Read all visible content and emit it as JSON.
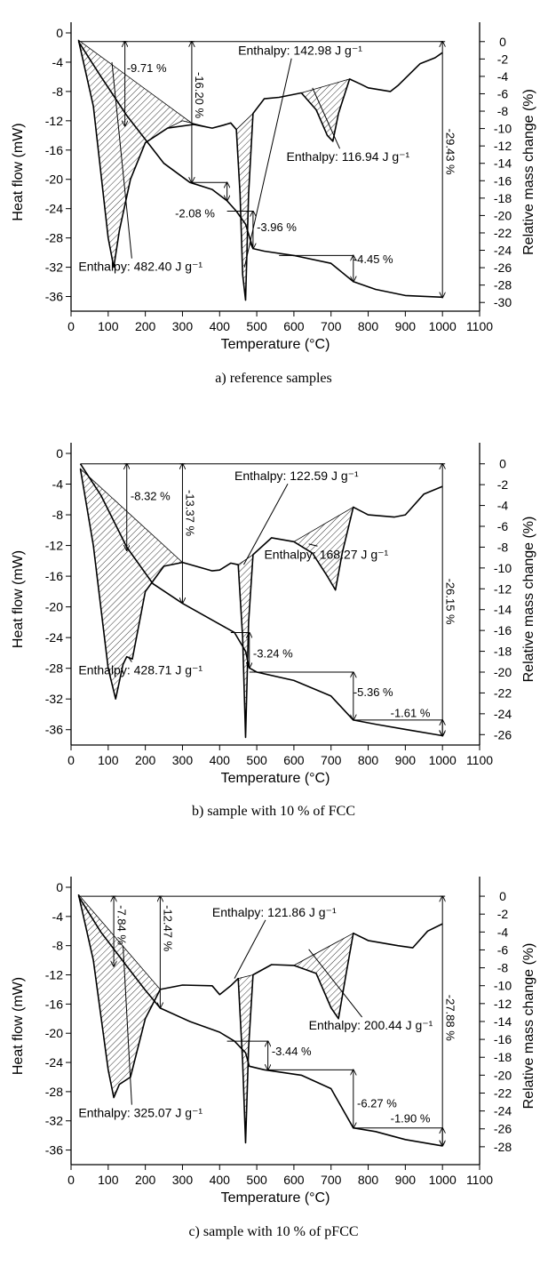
{
  "chart_data": [
    {
      "type": "line",
      "caption": "a) reference samples",
      "xlabel": "Temperature (°C)",
      "ylabel": "Heat flow (mW)",
      "y2label": "Relative mass change (%)",
      "xlim": [
        0,
        1100
      ],
      "xticks": [
        0,
        100,
        200,
        300,
        400,
        500,
        600,
        700,
        800,
        900,
        1000,
        1100
      ],
      "ylim": [
        -38,
        0
      ],
      "yticks": [
        0,
        -4,
        -8,
        -12,
        -16,
        -20,
        -24,
        -28,
        -32,
        -36
      ],
      "y2lim": [
        -31,
        1
      ],
      "y2ticks": [
        0,
        -2,
        -4,
        -6,
        -8,
        -10,
        -12,
        -14,
        -16,
        -18,
        -20,
        -22,
        -24,
        -26,
        -28,
        -30
      ],
      "series": [
        {
          "role": "heat-flow",
          "x": [
            20,
            60,
            100,
            115,
            130,
            160,
            200,
            260,
            330,
            380,
            410,
            430,
            445,
            455,
            462,
            470,
            478,
            490,
            520,
            560,
            620,
            660,
            690,
            705,
            720,
            750,
            780,
            800,
            860,
            880,
            940,
            980,
            1000
          ],
          "y": [
            -1,
            -10,
            -28,
            -32,
            -27,
            -20,
            -15,
            -13,
            -12.5,
            -13,
            -12.6,
            -12.3,
            -13.2,
            -22,
            -33,
            -36.5,
            -22,
            -11,
            -9,
            -8.8,
            -8.2,
            -10.5,
            -14,
            -14.8,
            -11,
            -6.3,
            -7,
            -7.5,
            -8,
            -7.2,
            -4.2,
            -3.4,
            -2.7
          ]
        },
        {
          "role": "mass-change",
          "x": [
            20,
            80,
            150,
            250,
            320,
            380,
            420,
            445,
            470,
            490,
            520,
            600,
            700,
            760,
            820,
            900,
            1000
          ],
          "y": [
            0,
            -4,
            -8.5,
            -14,
            -16.2,
            -17,
            -18.3,
            -19.5,
            -21,
            -23.8,
            -24.1,
            -24.6,
            -25.5,
            -27.6,
            -28.5,
            -29.2,
            -29.4
          ]
        }
      ],
      "annotations": [
        "-9.71 %",
        "-16.20 %",
        "-29.43 %",
        "-2.08 %",
        "-3.96 %",
        "-4.45 %",
        "Enthalpy: 142.98 J g⁻¹",
        "Enthalpy: 116.94 J g⁻¹",
        "Enthalpy: 482.40 J g⁻¹"
      ]
    },
    {
      "type": "line",
      "caption": "b) sample with 10 % of FCC",
      "xlabel": "Temperature (°C)",
      "ylabel": "Heat flow (mW)",
      "y2label": "Relative mass change (%)",
      "xlim": [
        0,
        1100
      ],
      "xticks": [
        0,
        100,
        200,
        300,
        400,
        500,
        600,
        700,
        800,
        900,
        1000,
        1100
      ],
      "ylim": [
        -38,
        0
      ],
      "yticks": [
        0,
        -4,
        -8,
        -12,
        -16,
        -20,
        -24,
        -28,
        -32,
        -36
      ],
      "y2lim": [
        -27,
        1
      ],
      "y2ticks": [
        0,
        -2,
        -4,
        -6,
        -8,
        -10,
        -12,
        -14,
        -16,
        -18,
        -20,
        -22,
        -24,
        -26
      ],
      "series": [
        {
          "role": "heat-flow",
          "x": [
            25,
            60,
            100,
            120,
            140,
            150,
            165,
            200,
            250,
            300,
            380,
            400,
            430,
            450,
            462,
            470,
            478,
            490,
            540,
            600,
            650,
            690,
            712,
            730,
            760,
            800,
            870,
            900,
            950,
            1000
          ],
          "y": [
            -2,
            -12,
            -28,
            -32,
            -27.5,
            -26.5,
            -26.8,
            -18,
            -14.7,
            -14.2,
            -15.3,
            -15.2,
            -14.3,
            -14.5,
            -24,
            -37,
            -22,
            -13.2,
            -11,
            -11.5,
            -13,
            -16,
            -17.8,
            -13,
            -7,
            -8,
            -8.3,
            -8,
            -5.3,
            -4.3
          ]
        },
        {
          "role": "mass-change",
          "x": [
            25,
            80,
            150,
            220,
            300,
            380,
            440,
            470,
            480,
            500,
            600,
            700,
            760,
            820,
            900,
            1000
          ],
          "y": [
            0,
            -3,
            -8,
            -11.5,
            -13.4,
            -15,
            -16.2,
            -18,
            -19.6,
            -20,
            -20.8,
            -22.3,
            -24.6,
            -25,
            -25.5,
            -26.1
          ]
        }
      ],
      "annotations": [
        "-8.32 %",
        "-13.37 %",
        "-26.15 %",
        "-3.24 %",
        "-5.36 %",
        "-1.61 %",
        "Enthalpy: 122.59 J g⁻¹",
        "Enthalpy: 168.27 J g⁻¹",
        "Enthalpy: 428.71 J g⁻¹"
      ]
    },
    {
      "type": "line",
      "caption": "c) sample with 10 % of pFCC",
      "xlabel": "Temperature (°C)",
      "ylabel": "Heat flow (mW)",
      "y2label": "Relative mass change (%)",
      "xlim": [
        0,
        1100
      ],
      "xticks": [
        0,
        100,
        200,
        300,
        400,
        500,
        600,
        700,
        800,
        900,
        1000,
        1100
      ],
      "ylim": [
        -38,
        0
      ],
      "yticks": [
        0,
        -4,
        -8,
        -12,
        -16,
        -20,
        -24,
        -28,
        -32,
        -36
      ],
      "y2lim": [
        -30,
        1
      ],
      "y2ticks": [
        0,
        -2,
        -4,
        -6,
        -8,
        -10,
        -12,
        -14,
        -16,
        -18,
        -20,
        -22,
        -24,
        -26,
        -28
      ],
      "series": [
        {
          "role": "heat-flow",
          "x": [
            20,
            60,
            100,
            115,
            130,
            160,
            200,
            240,
            300,
            380,
            400,
            430,
            450,
            462,
            470,
            478,
            490,
            540,
            600,
            660,
            700,
            720,
            740,
            760,
            800,
            880,
            920,
            960,
            1000
          ],
          "y": [
            -1,
            -10,
            -25,
            -28.8,
            -27,
            -26,
            -18,
            -14,
            -13.4,
            -13.5,
            -14.7,
            -13.5,
            -12.5,
            -24,
            -35,
            -22,
            -12,
            -10.6,
            -10.7,
            -11.8,
            -16.5,
            -18,
            -12,
            -6.3,
            -7.3,
            -8,
            -8.3,
            -6,
            -5
          ]
        },
        {
          "role": "mass-change",
          "x": [
            20,
            80,
            150,
            200,
            240,
            320,
            400,
            440,
            470,
            480,
            520,
            620,
            700,
            760,
            820,
            900,
            1000
          ],
          "y": [
            0,
            -4,
            -7.8,
            -10.5,
            -12.5,
            -14,
            -15.2,
            -16.2,
            -17.5,
            -19,
            -19.4,
            -20,
            -21.5,
            -25.9,
            -26.3,
            -27.2,
            -27.9
          ]
        }
      ],
      "annotations": [
        "-7.84 %",
        "-12.47 %",
        "-27.88 %",
        "-3.44 %",
        "-6.27 %",
        "-1.90 %",
        "Enthalpy: 121.86 J g⁻¹",
        "Enthalpy: 200.44 J g⁻¹",
        "Enthalpy: 325.07 J g⁻¹"
      ]
    }
  ]
}
